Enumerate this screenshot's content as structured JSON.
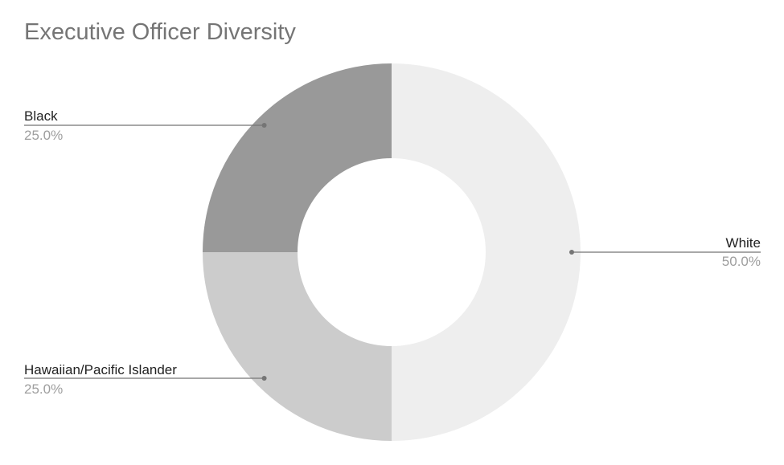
{
  "chart_data": {
    "type": "pie",
    "donut": true,
    "title": "Executive Officer Diversity",
    "slices": [
      {
        "label": "White",
        "value": 50.0,
        "percent_label": "50.0%",
        "color": "#eeeeee"
      },
      {
        "label": "Hawaiian/Pacific Islander",
        "value": 25.0,
        "percent_label": "25.0%",
        "color": "#cccccc"
      },
      {
        "label": "Black",
        "value": 25.0,
        "percent_label": "25.0%",
        "color": "#999999"
      }
    ],
    "legend": "none",
    "labels": "outside with leader lines"
  }
}
